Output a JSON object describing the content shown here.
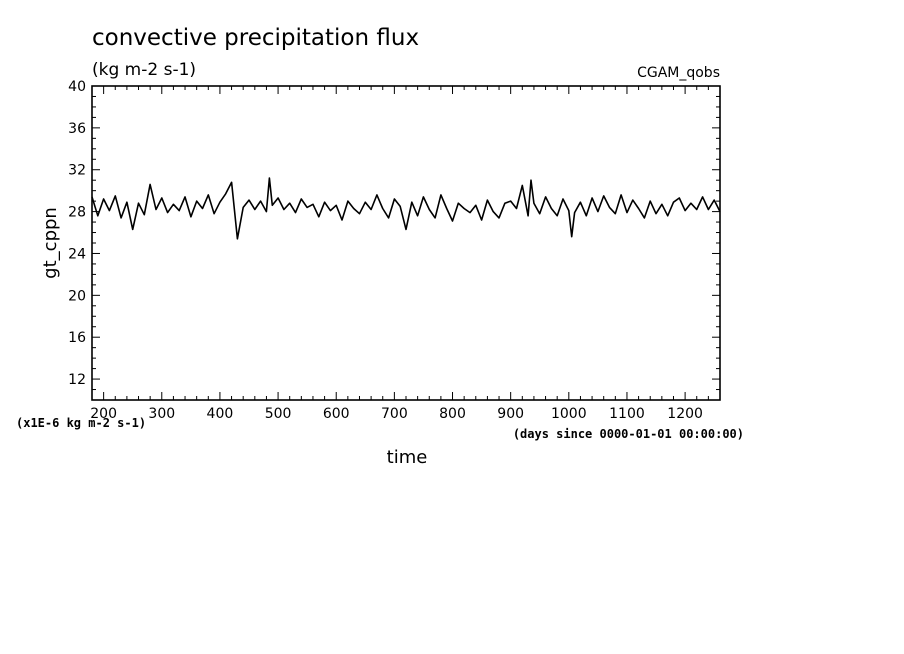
{
  "chart_data": {
    "type": "line",
    "title": "convective precipitation flux",
    "subtitle": "(kg m-2 s-1)",
    "run_label": "CGAM_qobs",
    "xlabel": "time",
    "ylabel": "gt_cppn",
    "x_unit_note": "(days since 0000-01-01 00:00:00)",
    "y_scale_note": "(x1E-6 kg m-2 s-1)",
    "xlim": [
      180,
      1260
    ],
    "ylim": [
      10,
      40
    ],
    "xticks": [
      200,
      300,
      400,
      500,
      600,
      700,
      800,
      900,
      1000,
      1100,
      1200
    ],
    "yticks": [
      12,
      16,
      20,
      24,
      28,
      32,
      36,
      40
    ],
    "grid": false,
    "series": [
      {
        "color": "#000000",
        "x": [
          180,
          190,
          200,
          210,
          220,
          230,
          240,
          250,
          260,
          270,
          280,
          290,
          300,
          310,
          320,
          330,
          340,
          350,
          360,
          370,
          380,
          390,
          400,
          410,
          420,
          425,
          430,
          440,
          450,
          460,
          470,
          480,
          485,
          490,
          500,
          510,
          520,
          530,
          540,
          550,
          560,
          570,
          580,
          590,
          600,
          610,
          620,
          630,
          640,
          650,
          660,
          670,
          680,
          690,
          700,
          710,
          720,
          730,
          740,
          750,
          760,
          770,
          780,
          790,
          800,
          810,
          820,
          830,
          840,
          850,
          860,
          870,
          880,
          890,
          900,
          910,
          920,
          930,
          935,
          940,
          950,
          960,
          970,
          980,
          990,
          1000,
          1005,
          1010,
          1020,
          1030,
          1040,
          1050,
          1060,
          1070,
          1080,
          1090,
          1100,
          1110,
          1120,
          1130,
          1140,
          1150,
          1160,
          1170,
          1180,
          1190,
          1200,
          1210,
          1220,
          1230,
          1240,
          1250,
          1260
        ],
        "y": [
          29.4,
          27.6,
          29.2,
          28.1,
          29.5,
          27.4,
          28.9,
          26.3,
          28.8,
          27.7,
          30.6,
          28.2,
          29.3,
          27.9,
          28.7,
          28.1,
          29.4,
          27.5,
          29.0,
          28.3,
          29.6,
          27.8,
          28.9,
          29.7,
          30.8,
          28.1,
          25.4,
          28.4,
          29.1,
          28.2,
          29.0,
          28.0,
          31.2,
          28.6,
          29.3,
          28.2,
          28.8,
          27.9,
          29.2,
          28.4,
          28.7,
          27.5,
          28.9,
          28.1,
          28.6,
          27.2,
          29.0,
          28.3,
          27.8,
          28.9,
          28.2,
          29.6,
          28.3,
          27.4,
          29.2,
          28.5,
          26.3,
          28.9,
          27.6,
          29.4,
          28.2,
          27.4,
          29.6,
          28.3,
          27.1,
          28.8,
          28.3,
          27.9,
          28.6,
          27.2,
          29.1,
          28.0,
          27.4,
          28.8,
          29.0,
          28.3,
          30.5,
          27.6,
          31.0,
          28.8,
          27.8,
          29.4,
          28.3,
          27.6,
          29.2,
          28.1,
          25.6,
          27.9,
          28.9,
          27.6,
          29.3,
          28.0,
          29.5,
          28.4,
          27.8,
          29.6,
          27.9,
          29.1,
          28.3,
          27.4,
          29.0,
          27.8,
          28.7,
          27.6,
          28.9,
          29.3,
          28.1,
          28.8,
          28.2,
          29.4,
          28.2,
          29.1,
          28.0
        ]
      }
    ]
  }
}
